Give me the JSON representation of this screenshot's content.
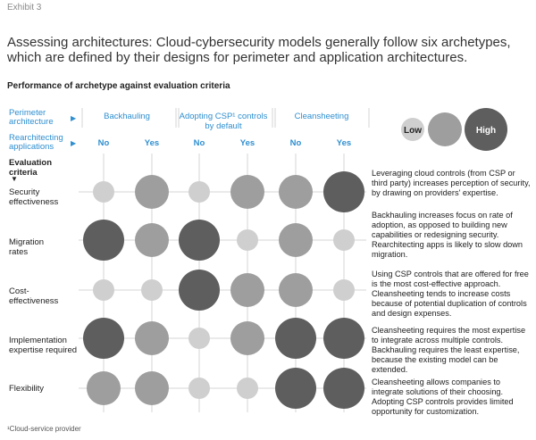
{
  "header": {
    "exhibit_label": "Exhibit 3",
    "title": "Assessing architectures: Cloud-cybersecurity models generally follow six archetypes, which are defined by their designs for perimeter and application architectures.",
    "subtitle": "Performance of archetype against evaluation criteria"
  },
  "axis_labels": {
    "perimeter": "Perimeter architecture",
    "rearchitecting": "Rearchitecting applications",
    "criteria": "Evaluation criteria"
  },
  "legend": {
    "low": "Low",
    "high": "High"
  },
  "footnote": "¹Cloud-service provider",
  "colors": {
    "accent": "#2f8fd0",
    "low": "#cfcfcf",
    "mid": "#9e9e9e",
    "high": "#5e5e5e"
  },
  "chart_data": {
    "type": "bubble-matrix",
    "scale": {
      "1": "Low",
      "2": "Medium",
      "3": "High"
    },
    "perimeter_groups": [
      "Backhauling",
      "Adopting CSP¹ controls by default",
      "Cleansheeting"
    ],
    "columns": [
      {
        "group": "Backhauling",
        "rearchitecting": "No"
      },
      {
        "group": "Backhauling",
        "rearchitecting": "Yes"
      },
      {
        "group": "Adopting CSP¹ controls by default",
        "rearchitecting": "No"
      },
      {
        "group": "Adopting CSP¹ controls by default",
        "rearchitecting": "Yes"
      },
      {
        "group": "Cleansheeting",
        "rearchitecting": "No"
      },
      {
        "group": "Cleansheeting",
        "rearchitecting": "Yes"
      }
    ],
    "rows": [
      {
        "criterion": "Security effectiveness",
        "values": [
          1,
          2,
          1,
          2,
          2,
          3
        ],
        "note": "Leveraging cloud controls (from CSP or third party) increases perception of security, by drawing on providers' expertise."
      },
      {
        "criterion": "Migration rates",
        "values": [
          3,
          2,
          3,
          1,
          2,
          1
        ],
        "note": "Backhauling increases focus on rate of adoption, as opposed to building new capabilities or redesigning security. Rearchitecting apps is likely to slow down migration."
      },
      {
        "criterion": "Cost-effectiveness",
        "values": [
          1,
          1,
          3,
          2,
          2,
          1
        ],
        "note": "Using CSP controls that are offered for free is the most cost-effective approach. Cleansheeting tends to increase costs because of potential duplication of controls and design expenses."
      },
      {
        "criterion": "Implementation expertise required",
        "values": [
          3,
          2,
          1,
          2,
          3,
          3
        ],
        "note": "Cleansheeting requires the most expertise to integrate across multiple controls. Backhauling requires the least expertise, because the existing model can be extended."
      },
      {
        "criterion": "Flexibility",
        "values": [
          2,
          2,
          1,
          1,
          3,
          3
        ],
        "note": "Cleansheeting allows companies to integrate solutions of their choosing. Adopting CSP controls provides limited opportunity for customization."
      }
    ]
  }
}
